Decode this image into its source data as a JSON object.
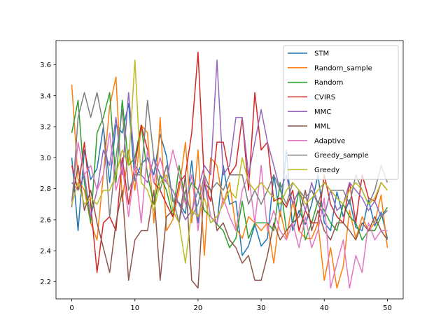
{
  "chart_data": {
    "type": "line",
    "title": "",
    "xlabel": "",
    "ylabel": "",
    "xlim": [
      -2.5,
      52.5
    ],
    "ylim": [
      2.09,
      3.755
    ],
    "xticks": [
      0,
      10,
      20,
      30,
      40,
      50
    ],
    "yticks": [
      2.2,
      2.4,
      2.6,
      2.8,
      3.0,
      3.2,
      3.4,
      3.6
    ],
    "grid": false,
    "legend_position": "top-right",
    "series": [
      {
        "name": "STM",
        "color": "#1f77b4",
        "values": [
          3.0,
          2.53,
          3.05,
          2.86,
          2.93,
          3.2,
          2.84,
          3.21,
          3.16,
          3.35,
          2.85,
          2.96,
          3.0,
          2.89,
          3.15,
          3.01,
          2.72,
          2.71,
          2.64,
          2.98,
          2.58,
          2.85,
          2.62,
          2.57,
          2.95,
          2.7,
          2.72,
          2.37,
          2.43,
          2.57,
          2.43,
          2.48,
          2.89,
          2.62,
          3.05,
          2.53,
          2.66,
          2.57,
          2.7,
          2.89,
          2.58,
          2.53,
          2.78,
          2.62,
          2.73,
          2.55,
          2.53,
          2.73,
          2.56,
          2.65,
          2.48
        ]
      },
      {
        "name": "Random_sample",
        "color": "#ff7f0e",
        "values": [
          3.47,
          2.86,
          2.79,
          2.58,
          2.47,
          2.89,
          3.33,
          3.52,
          2.72,
          3.05,
          2.79,
          3.21,
          3.16,
          2.58,
          3.26,
          2.53,
          2.6,
          2.79,
          3.1,
          2.58,
          3.05,
          2.37,
          3.0,
          2.95,
          2.7,
          2.84,
          2.55,
          2.48,
          2.62,
          2.58,
          2.53,
          2.58,
          2.32,
          2.66,
          2.48,
          2.72,
          2.53,
          2.48,
          2.48,
          2.58,
          2.21,
          2.42,
          2.16,
          2.3,
          2.66,
          2.48,
          2.62,
          2.53,
          2.58,
          2.76,
          2.42
        ]
      },
      {
        "name": "Random",
        "color": "#2ca02c",
        "values": [
          3.16,
          3.37,
          2.84,
          2.58,
          3.16,
          3.26,
          3.42,
          2.84,
          3.37,
          2.95,
          3.0,
          3.21,
          2.89,
          2.7,
          2.89,
          2.79,
          2.62,
          2.95,
          2.72,
          2.84,
          2.79,
          2.66,
          2.62,
          2.57,
          2.53,
          2.42,
          2.48,
          2.72,
          2.48,
          2.58,
          2.58,
          2.58,
          2.53,
          2.84,
          2.53,
          2.58,
          2.79,
          2.47,
          2.58,
          2.72,
          2.66,
          2.58,
          2.53,
          2.7,
          2.62,
          2.58,
          2.47,
          2.53,
          2.53,
          2.62,
          2.68
        ]
      },
      {
        "name": "CVIRS",
        "color": "#d62728",
        "values": [
          2.95,
          2.79,
          3.1,
          2.7,
          2.26,
          2.58,
          2.62,
          2.53,
          3.0,
          2.7,
          2.95,
          3.21,
          3.05,
          2.84,
          2.79,
          2.7,
          2.62,
          2.84,
          2.89,
          3.16,
          3.68,
          2.84,
          2.72,
          3.1,
          3.1,
          2.89,
          2.95,
          3.26,
          2.79,
          3.42,
          3.05,
          3.1,
          2.72,
          2.74,
          2.68,
          2.79,
          2.53,
          2.66,
          2.58,
          2.58,
          2.89,
          2.7,
          2.62,
          2.58,
          2.84,
          2.58,
          2.89,
          2.74,
          2.72,
          2.84,
          2.79
        ]
      },
      {
        "name": "MMC",
        "color": "#9467bd",
        "values": [
          2.84,
          2.79,
          2.89,
          2.62,
          2.79,
          3.05,
          2.95,
          3.26,
          2.89,
          3.42,
          2.95,
          2.89,
          2.84,
          3.0,
          2.89,
          2.84,
          2.79,
          2.7,
          2.6,
          2.66,
          2.79,
          2.95,
          2.89,
          3.63,
          2.89,
          2.95,
          3.26,
          3.26,
          2.89,
          3.1,
          3.31,
          3.1,
          2.95,
          2.79,
          2.89,
          2.7,
          2.79,
          2.66,
          2.84,
          2.7,
          2.62,
          2.79,
          2.66,
          2.7,
          2.84,
          2.79,
          2.74,
          2.66,
          2.72,
          2.62,
          2.66
        ]
      },
      {
        "name": "MML",
        "color": "#8c564b",
        "values": [
          2.72,
          2.95,
          2.66,
          2.79,
          2.58,
          2.42,
          2.26,
          2.58,
          2.79,
          2.21,
          2.47,
          2.53,
          2.53,
          2.79,
          2.21,
          2.62,
          2.66,
          2.58,
          2.89,
          2.21,
          2.16,
          2.84,
          2.79,
          2.53,
          2.58,
          2.47,
          2.42,
          2.32,
          2.37,
          2.21,
          2.21,
          2.37,
          2.58,
          2.47,
          2.53,
          2.58,
          2.62,
          2.79,
          2.53,
          2.66,
          2.53,
          2.47,
          2.58,
          2.58,
          2.53,
          2.47,
          2.58,
          2.53,
          2.62,
          2.53,
          2.47
        ]
      },
      {
        "name": "Adaptive",
        "color": "#e377c2",
        "values": [
          2.72,
          3.1,
          2.89,
          2.95,
          2.79,
          2.89,
          3.16,
          2.79,
          2.95,
          2.62,
          2.95,
          2.58,
          3.05,
          2.84,
          3.0,
          2.84,
          3.05,
          2.89,
          2.7,
          2.89,
          2.53,
          2.89,
          2.62,
          2.58,
          2.74,
          2.62,
          2.53,
          2.79,
          2.89,
          2.58,
          2.95,
          2.53,
          2.66,
          2.53,
          2.47,
          2.58,
          2.42,
          2.62,
          2.42,
          2.53,
          2.74,
          2.16,
          2.32,
          2.47,
          2.16,
          2.37,
          2.26,
          2.58,
          2.47,
          2.53,
          2.53
        ]
      },
      {
        "name": "Greedy_sample",
        "color": "#7f7f7f",
        "values": [
          2.68,
          3.26,
          3.42,
          3.26,
          3.42,
          3.21,
          2.62,
          3.0,
          3.31,
          2.79,
          2.89,
          2.89,
          3.37,
          3.0,
          2.79,
          2.95,
          2.74,
          2.58,
          2.79,
          2.62,
          2.7,
          2.89,
          2.79,
          2.84,
          2.79,
          2.89,
          2.89,
          2.89,
          2.7,
          2.79,
          2.7,
          2.79,
          2.89,
          2.79,
          2.7,
          2.84,
          2.79,
          2.74,
          2.79,
          2.7,
          2.84,
          2.79,
          2.79,
          2.79,
          2.7,
          2.89,
          2.79,
          2.7,
          2.79,
          2.95,
          2.84
        ]
      },
      {
        "name": "Greedy",
        "color": "#bcbd22",
        "values": [
          2.7,
          2.84,
          2.7,
          2.74,
          2.7,
          2.79,
          2.79,
          2.89,
          3.05,
          2.95,
          3.63,
          2.84,
          2.79,
          2.66,
          2.84,
          2.89,
          2.66,
          2.58,
          2.32,
          2.66,
          2.62,
          2.74,
          2.58,
          2.62,
          2.7,
          2.79,
          2.74,
          3.0,
          2.84,
          2.79,
          2.84,
          2.79,
          2.74,
          2.7,
          2.79,
          2.84,
          2.79,
          2.7,
          2.74,
          2.79,
          2.84,
          2.79,
          2.74,
          2.7,
          2.79,
          2.84,
          2.79,
          2.7,
          2.74,
          2.84,
          2.79
        ]
      }
    ]
  }
}
